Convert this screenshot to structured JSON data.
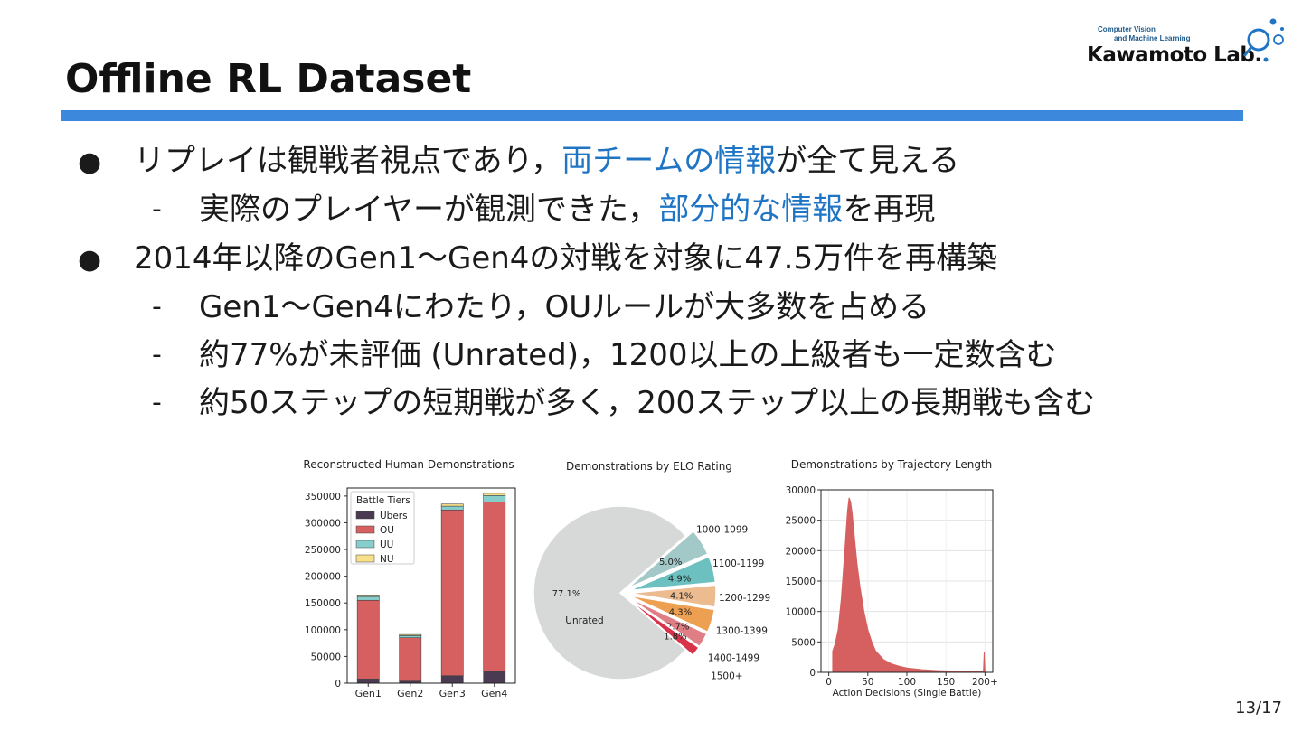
{
  "slide": {
    "title": "Offline RL Dataset",
    "page": "13/17",
    "logo": {
      "line1": "Computer Vision",
      "line2": "and Machine Learning",
      "name": "Kawamoto Lab."
    },
    "bullets": [
      {
        "level": 1,
        "marker": "●",
        "parts": [
          {
            "text": "リプレイは観戦者視点であり，"
          },
          {
            "text": "両チームの情報",
            "hl": true
          },
          {
            "text": "が全て見える"
          }
        ]
      },
      {
        "level": 2,
        "marker": "-",
        "parts": [
          {
            "text": "実際のプレイヤーが観測できた，"
          },
          {
            "text": "部分的な情報",
            "hl": true
          },
          {
            "text": "を再現"
          }
        ]
      },
      {
        "level": 1,
        "marker": "●",
        "parts": [
          {
            "text": "2014年以降のGen1〜Gen4の対戦を対象に47.5万件を再構築"
          }
        ]
      },
      {
        "level": 2,
        "marker": "-",
        "parts": [
          {
            "text": "Gen1〜Gen4にわたり，OUルールが大多数を占める"
          }
        ]
      },
      {
        "level": 2,
        "marker": "-",
        "parts": [
          {
            "text": "約77%が未評価 (Unrated)，1200以上の上級者も一定数含む"
          }
        ]
      },
      {
        "level": 2,
        "marker": "-",
        "parts": [
          {
            "text": "約50ステップの短期戦が多く，200ステップ以上の長期戦も含む"
          }
        ]
      }
    ]
  },
  "chart_data": [
    {
      "type": "bar",
      "stacked": true,
      "title": "Reconstructed Human Demonstrations",
      "categories": [
        "Gen1",
        "Gen2",
        "Gen3",
        "Gen4"
      ],
      "ylim": [
        0,
        365000
      ],
      "yticks": [
        0,
        50000,
        100000,
        150000,
        200000,
        250000,
        300000,
        350000
      ],
      "legend": {
        "title": "Battle Tiers",
        "position": "top-left"
      },
      "series": [
        {
          "name": "Ubers",
          "color": "#4a3b52",
          "values": [
            8000,
            4000,
            14000,
            22000
          ]
        },
        {
          "name": "OU",
          "color": "#d5605f",
          "values": [
            147000,
            81000,
            310000,
            317000
          ]
        },
        {
          "name": "UU",
          "color": "#86cdcc",
          "values": [
            7000,
            4000,
            7000,
            12000
          ]
        },
        {
          "name": "NU",
          "color": "#f7e08a",
          "values": [
            3000,
            2000,
            4000,
            4000
          ]
        }
      ]
    },
    {
      "type": "pie",
      "title": "Demonstrations by ELO Rating",
      "slices": [
        {
          "label": "Unrated",
          "value": 77.1,
          "pct": "77.1%",
          "color": "#d7d8d8",
          "explode": false
        },
        {
          "label": "1000-1099",
          "value": 5.0,
          "pct": "5.0%",
          "color": "#a3c8c8",
          "explode": true
        },
        {
          "label": "1100-1199",
          "value": 4.9,
          "pct": "4.9%",
          "color": "#6cc0c0",
          "explode": true
        },
        {
          "label": "1200-1299",
          "value": 4.1,
          "pct": "4.1%",
          "color": "#ecbb8f",
          "explode": true
        },
        {
          "label": "1300-1399",
          "value": 4.3,
          "pct": "4.3%",
          "color": "#eea052",
          "explode": true
        },
        {
          "label": "1400-1499",
          "value": 2.7,
          "pct": "2.7%",
          "color": "#e07e85",
          "explode": true
        },
        {
          "label": "1500+",
          "value": 1.8,
          "pct": "1.8%",
          "color": "#d8334a",
          "explode": true
        }
      ]
    },
    {
      "type": "area",
      "title": "Demonstrations by Trajectory Length",
      "xlabel": "Action Decisions (Single Battle)",
      "xlim": [
        -10,
        210
      ],
      "ylim": [
        0,
        30000
      ],
      "xticks": [
        "0",
        "50",
        "100",
        "150",
        "200+"
      ],
      "xtick_values": [
        0,
        50,
        100,
        150,
        200
      ],
      "yticks": [
        0,
        5000,
        10000,
        15000,
        20000,
        25000,
        30000
      ],
      "grid": true,
      "color": "#d5605f",
      "x": [
        5,
        8,
        12,
        16,
        20,
        24,
        26,
        28,
        30,
        33,
        36,
        40,
        45,
        50,
        55,
        60,
        70,
        80,
        90,
        100,
        120,
        140,
        160,
        180,
        198,
        199,
        200
      ],
      "y": [
        3500,
        4600,
        7000,
        12000,
        19000,
        26500,
        28700,
        28000,
        26000,
        22000,
        18000,
        14000,
        10000,
        7000,
        5000,
        3500,
        2100,
        1400,
        1000,
        700,
        420,
        280,
        200,
        160,
        150,
        3300,
        0
      ]
    }
  ]
}
